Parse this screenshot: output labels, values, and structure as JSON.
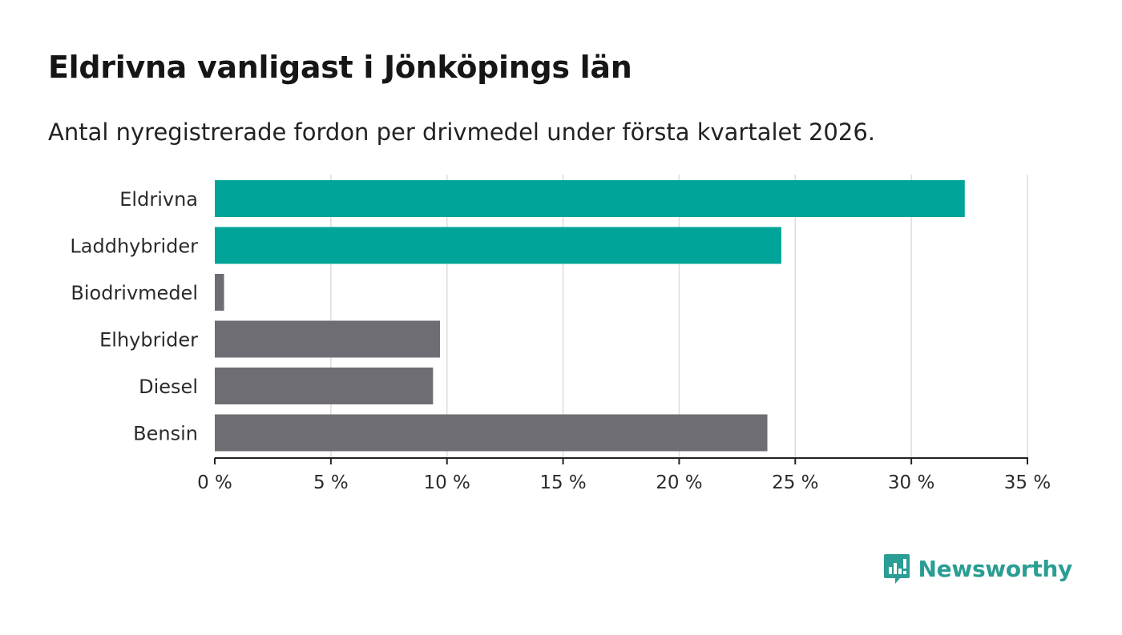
{
  "title": "Eldrivna vanligast i Jönköpings län",
  "subtitle": "Antal nyregistrerade fordon per drivmedel under första kvartalet 2026.",
  "brand": {
    "name": "Newsworthy",
    "icon": "newsworthy-logo-icon"
  },
  "colors": {
    "highlight": "#00a499",
    "other": "#6e6d73",
    "axis": "#222222",
    "grid": "#dcdcdc",
    "brand": "#2a9d94"
  },
  "chart_data": {
    "type": "bar",
    "orientation": "horizontal",
    "categories": [
      "Eldrivna",
      "Laddhybrider",
      "Biodrivmedel",
      "Elhybrider",
      "Diesel",
      "Bensin"
    ],
    "values": [
      32.3,
      24.4,
      0.4,
      9.7,
      9.4,
      23.8
    ],
    "highlighted": [
      true,
      true,
      false,
      false,
      false,
      false
    ],
    "unit": "%",
    "xlim": [
      0,
      35
    ],
    "xticks": [
      0,
      5,
      10,
      15,
      20,
      25,
      30,
      35
    ],
    "xtick_labels": [
      "0 %",
      "5 %",
      "10 %",
      "15 %",
      "20 %",
      "25 %",
      "30 %",
      "35 %"
    ],
    "grid": true,
    "xlabel": "",
    "ylabel": ""
  }
}
